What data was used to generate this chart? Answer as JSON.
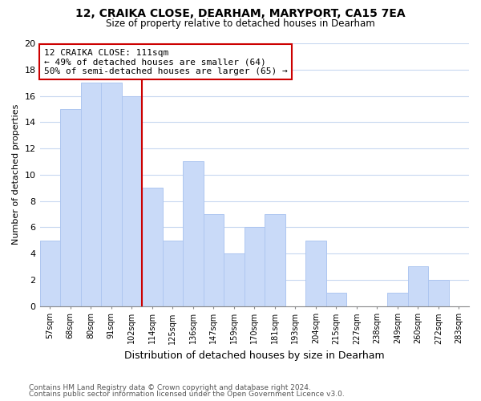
{
  "title": "12, CRAIKA CLOSE, DEARHAM, MARYPORT, CA15 7EA",
  "subtitle": "Size of property relative to detached houses in Dearham",
  "xlabel": "Distribution of detached houses by size in Dearham",
  "ylabel": "Number of detached properties",
  "footnote1": "Contains HM Land Registry data © Crown copyright and database right 2024.",
  "footnote2": "Contains public sector information licensed under the Open Government Licence v3.0.",
  "bin_labels": [
    "57sqm",
    "68sqm",
    "80sqm",
    "91sqm",
    "102sqm",
    "114sqm",
    "125sqm",
    "136sqm",
    "147sqm",
    "159sqm",
    "170sqm",
    "181sqm",
    "193sqm",
    "204sqm",
    "215sqm",
    "227sqm",
    "238sqm",
    "249sqm",
    "260sqm",
    "272sqm",
    "283sqm"
  ],
  "bar_heights": [
    5,
    15,
    17,
    17,
    16,
    9,
    5,
    11,
    7,
    4,
    6,
    7,
    0,
    5,
    1,
    0,
    0,
    1,
    3,
    2,
    0
  ],
  "bar_color": "#c9daf8",
  "bar_edge_color": "#aec6f0",
  "vline_x": 5,
  "vline_color": "#cc0000",
  "annotation_title": "12 CRAIKA CLOSE: 111sqm",
  "annotation_line1": "← 49% of detached houses are smaller (64)",
  "annotation_line2": "50% of semi-detached houses are larger (65) →",
  "ylim": [
    0,
    20
  ],
  "yticks": [
    0,
    2,
    4,
    6,
    8,
    10,
    12,
    14,
    16,
    18,
    20
  ],
  "bg_color": "#ffffff",
  "grid_color": "#c8d8f0"
}
